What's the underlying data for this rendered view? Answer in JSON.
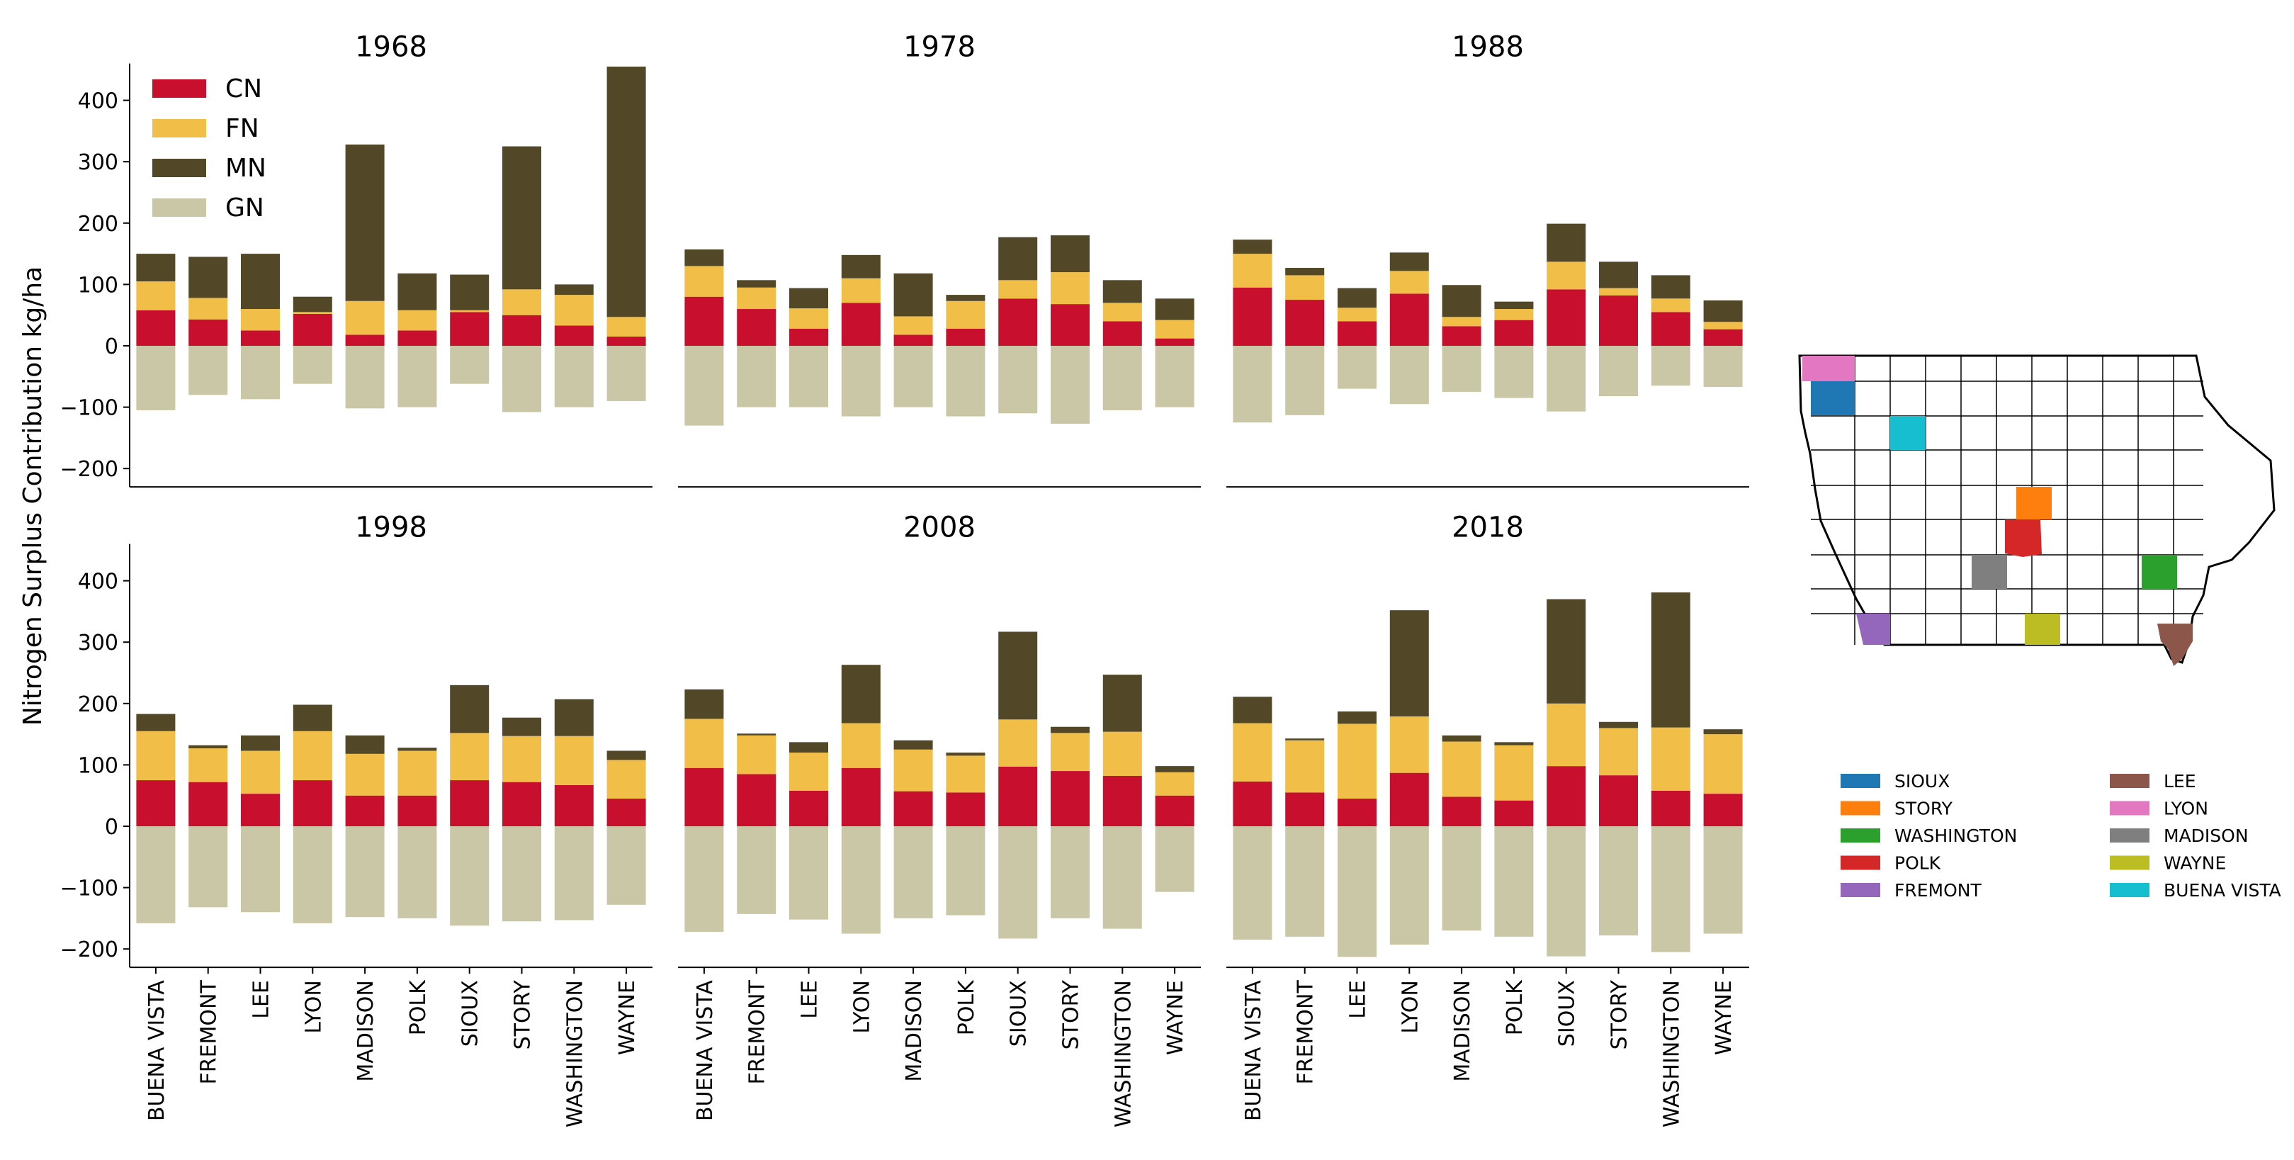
{
  "chart_data": {
    "type": "bar",
    "stacked": true,
    "ylabel": "Nitrogen Surplus Contribution kg/ha",
    "ylim": [
      -230,
      460
    ],
    "yticks": [
      -200,
      -100,
      0,
      100,
      200,
      300,
      400
    ],
    "ytick_labels": [
      "−200",
      "−100",
      "0",
      "100",
      "200",
      "300",
      "400"
    ],
    "categories": [
      "BUENA VISTA",
      "FREMONT",
      "LEE",
      "LYON",
      "MADISON",
      "POLK",
      "SIOUX",
      "STORY",
      "WASHINGTON",
      "WAYNE"
    ],
    "series_names": [
      "CN",
      "FN",
      "MN",
      "GN"
    ],
    "colors": {
      "CN": "#c8102e",
      "FN": "#f1be48",
      "MN": "#524727",
      "GN": "#cac7a7"
    },
    "legend_position": "upper-left of first panel",
    "panels": [
      {
        "title": "1968",
        "CN": [
          58,
          43,
          25,
          52,
          18,
          25,
          55,
          50,
          33,
          15
        ],
        "FN": [
          47,
          35,
          35,
          3,
          55,
          33,
          3,
          42,
          50,
          32
        ],
        "MN": [
          45,
          67,
          90,
          25,
          255,
          60,
          58,
          233,
          17,
          408
        ],
        "GN": [
          -105,
          -80,
          -87,
          -62,
          -102,
          -100,
          -62,
          -108,
          -100,
          -90
        ]
      },
      {
        "title": "1978",
        "CN": [
          80,
          60,
          28,
          70,
          18,
          28,
          77,
          68,
          40,
          12
        ],
        "FN": [
          50,
          35,
          33,
          40,
          30,
          45,
          30,
          52,
          30,
          30
        ],
        "MN": [
          27,
          12,
          33,
          38,
          70,
          10,
          70,
          60,
          37,
          35
        ],
        "GN": [
          -130,
          -100,
          -100,
          -115,
          -100,
          -115,
          -110,
          -127,
          -105,
          -100
        ]
      },
      {
        "title": "1988",
        "CN": [
          95,
          75,
          40,
          85,
          32,
          42,
          92,
          82,
          55,
          27
        ],
        "FN": [
          55,
          40,
          22,
          37,
          15,
          18,
          45,
          12,
          22,
          12
        ],
        "MN": [
          23,
          12,
          32,
          30,
          52,
          12,
          62,
          43,
          38,
          35
        ],
        "GN": [
          -125,
          -113,
          -70,
          -95,
          -75,
          -85,
          -107,
          -82,
          -65,
          -67
        ]
      },
      {
        "title": "1998",
        "CN": [
          75,
          72,
          53,
          75,
          50,
          50,
          75,
          72,
          67,
          45
        ],
        "FN": [
          80,
          55,
          70,
          80,
          68,
          73,
          77,
          75,
          80,
          63
        ],
        "MN": [
          28,
          5,
          25,
          43,
          30,
          5,
          78,
          30,
          60,
          15
        ],
        "GN": [
          -158,
          -132,
          -140,
          -158,
          -148,
          -150,
          -162,
          -155,
          -153,
          -128
        ]
      },
      {
        "title": "2008",
        "CN": [
          95,
          85,
          58,
          95,
          57,
          55,
          97,
          90,
          82,
          50
        ],
        "FN": [
          80,
          63,
          62,
          73,
          68,
          60,
          77,
          62,
          72,
          38
        ],
        "MN": [
          48,
          3,
          17,
          95,
          15,
          5,
          143,
          10,
          93,
          10
        ],
        "GN": [
          -172,
          -143,
          -152,
          -175,
          -150,
          -145,
          -183,
          -150,
          -167,
          -107
        ]
      },
      {
        "title": "2018",
        "CN": [
          73,
          55,
          45,
          87,
          48,
          42,
          98,
          83,
          58,
          53
        ],
        "FN": [
          95,
          85,
          122,
          92,
          90,
          90,
          102,
          77,
          103,
          97
        ],
        "MN": [
          43,
          3,
          20,
          173,
          10,
          5,
          170,
          10,
          220,
          8
        ],
        "GN": [
          -185,
          -180,
          -213,
          -193,
          -170,
          -180,
          -212,
          -178,
          -205,
          -175
        ]
      }
    ]
  },
  "map": {
    "legend": [
      {
        "label": "SIOUX",
        "color": "#1f77b4"
      },
      {
        "label": "STORY",
        "color": "#ff7f0e"
      },
      {
        "label": "WASHINGTON",
        "color": "#2ca02c"
      },
      {
        "label": "POLK",
        "color": "#d62728"
      },
      {
        "label": "FREMONT",
        "color": "#9467bd"
      },
      {
        "label": "LEE",
        "color": "#8c564b"
      },
      {
        "label": "LYON",
        "color": "#e377c2"
      },
      {
        "label": "MADISON",
        "color": "#7f7f7f"
      },
      {
        "label": "WAYNE",
        "color": "#bcbd22"
      },
      {
        "label": "BUENA VISTA",
        "color": "#17becf"
      }
    ]
  }
}
